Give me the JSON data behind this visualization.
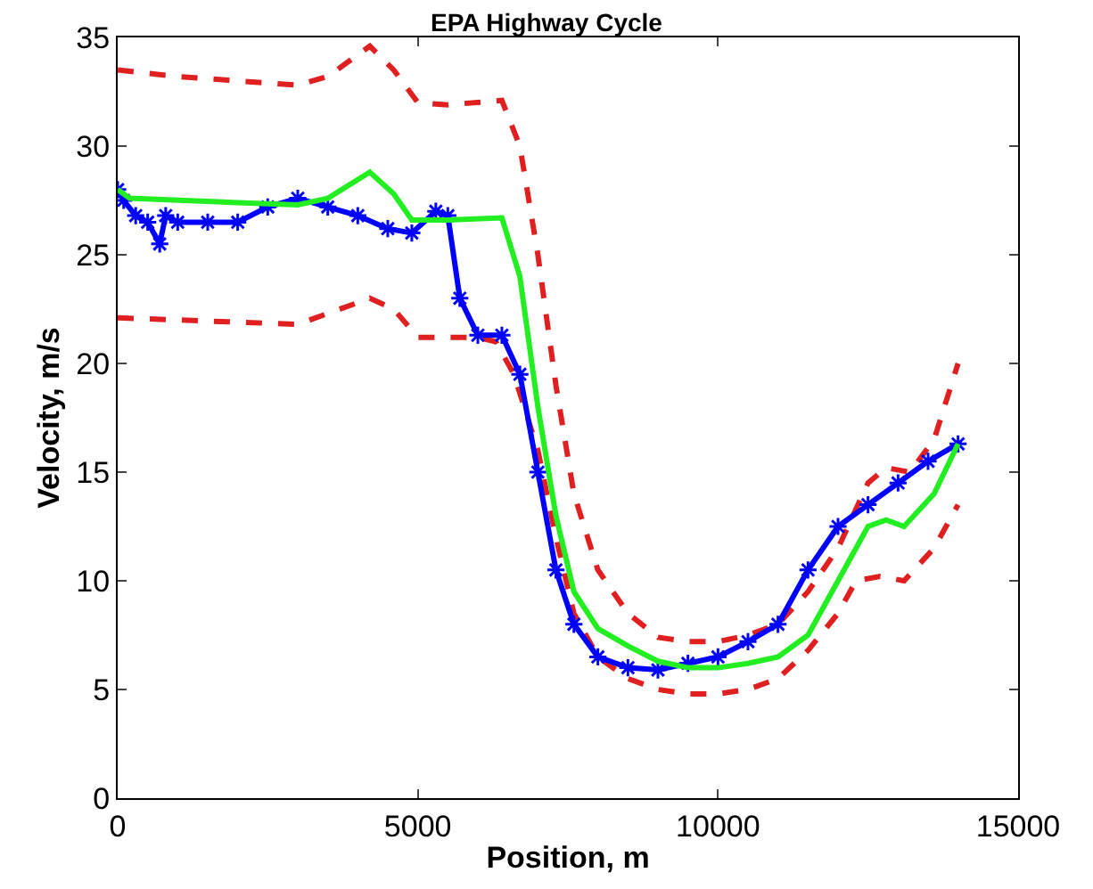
{
  "chart_data": {
    "type": "line",
    "title": "EPA Highway Cycle",
    "xlabel": "Position, m",
    "ylabel": "Velocity, m/s",
    "xlim": [
      0,
      15000
    ],
    "xticks": [
      0,
      5000,
      10000,
      15000
    ],
    "ylim": [
      0,
      35
    ],
    "yticks": [
      0,
      5,
      10,
      15,
      20,
      25,
      30,
      35
    ],
    "series": [
      {
        "color": "#e02020",
        "line_style": "dashed",
        "marker": "none",
        "x": [
          0,
          1000,
          3000,
          3500,
          4200,
          4600,
          5000,
          5500,
          6400,
          6700,
          7000,
          7300,
          7600,
          8000,
          8500,
          9000,
          9500,
          10000,
          10500,
          11000,
          11500,
          12000,
          12500,
          12800,
          13200,
          13600,
          14000
        ],
        "values": [
          33.5,
          33.2,
          32.8,
          33.2,
          34.6,
          33.5,
          32,
          31.9,
          32.1,
          30,
          25,
          19,
          14,
          10.5,
          8.5,
          7.4,
          7.2,
          7.2,
          7.5,
          8,
          9.5,
          11.5,
          14.5,
          15.2,
          15,
          16.5,
          20
        ]
      },
      {
        "color": "#e02020",
        "line_style": "dashed",
        "marker": "none",
        "x": [
          0,
          1000,
          3000,
          3500,
          4200,
          4600,
          5000,
          6000,
          6300,
          6600,
          7000,
          7300,
          7600,
          8000,
          8500,
          9000,
          9500,
          10000,
          10500,
          11000,
          11500,
          12000,
          12300,
          12700,
          13100,
          13600,
          14000
        ],
        "values": [
          22.1,
          22,
          21.8,
          22.3,
          23,
          22.5,
          21.2,
          21.2,
          21,
          19.5,
          16,
          12,
          8.5,
          6.5,
          5.5,
          5,
          4.8,
          4.8,
          5,
          5.5,
          6.8,
          8.5,
          10,
          10.2,
          10,
          11.5,
          13.5
        ]
      },
      {
        "color": "#0000ff",
        "line_style": "solid",
        "marker": "cross",
        "x": [
          0,
          100,
          300,
          500,
          700,
          800,
          1000,
          1500,
          2000,
          2500,
          3000,
          3500,
          4000,
          4500,
          4900,
          5300,
          5500,
          5700,
          6000,
          6400,
          6700,
          7000,
          7300,
          7600,
          8000,
          8500,
          9000,
          9500,
          10000,
          10500,
          11000,
          11500,
          12000,
          12500,
          13000,
          13500,
          14000
        ],
        "values": [
          28,
          27.5,
          26.8,
          26.5,
          25.5,
          26.8,
          26.5,
          26.5,
          26.5,
          27.2,
          27.6,
          27.2,
          26.8,
          26.2,
          26,
          27,
          26.8,
          23,
          21.3,
          21.3,
          19.5,
          15,
          10.5,
          8,
          6.5,
          6,
          5.9,
          6.2,
          6.5,
          7.2,
          8,
          10.5,
          12.5,
          13.5,
          14.5,
          15.5,
          16.3
        ]
      },
      {
        "color": "#22ee22",
        "line_style": "solid",
        "marker": "none",
        "x": [
          0,
          200,
          2000,
          3000,
          3500,
          4200,
          4600,
          4900,
          5500,
          6400,
          6700,
          7000,
          7300,
          7600,
          8000,
          8500,
          9000,
          9500,
          10000,
          10500,
          11000,
          11500,
          12000,
          12500,
          12800,
          13100,
          13600,
          14000
        ],
        "values": [
          28,
          27.6,
          27.4,
          27.3,
          27.6,
          28.8,
          27.8,
          26.6,
          26.6,
          26.7,
          24,
          18,
          13,
          9.5,
          7.8,
          7,
          6.3,
          6,
          6,
          6.2,
          6.5,
          7.5,
          10,
          12.5,
          12.8,
          12.5,
          14,
          16.3
        ]
      }
    ]
  }
}
